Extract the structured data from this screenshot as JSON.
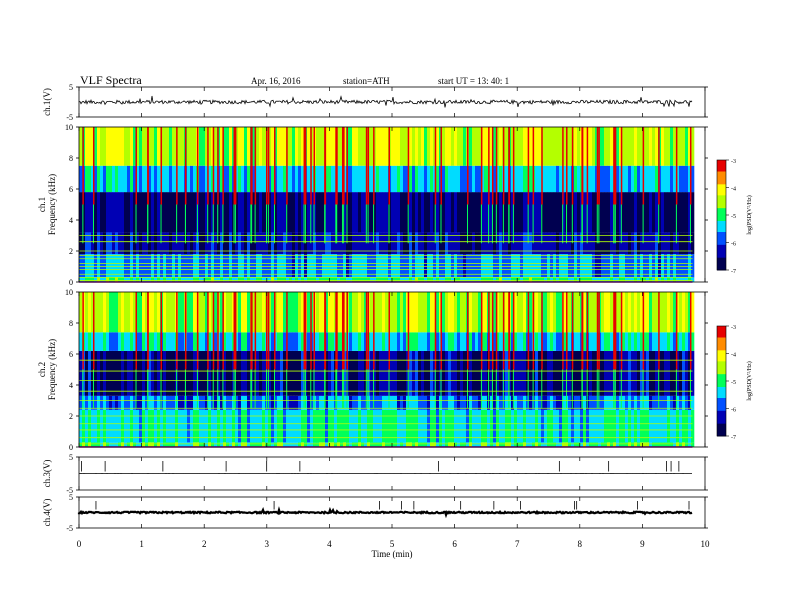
{
  "header": {
    "title": "VLF  Spectra",
    "date": "Apr. 16, 2016",
    "station": "station=ATH",
    "start": "start  UT  =    13: 40: 1"
  },
  "colorbar": {
    "label": "log(PSD(V²/Hz)",
    "ticks": [
      "-3",
      "-4",
      "-5",
      "-6",
      "-7"
    ],
    "colors": [
      "#000050",
      "#0000b4",
      "#0050ff",
      "#00dcff",
      "#00ff5a",
      "#b4ff00",
      "#ffff00",
      "#ff8c00",
      "#e60000",
      "#ffffff"
    ]
  },
  "chart_data": [
    {
      "type": "line",
      "name": "ch.1 waveform",
      "ylabel": "ch.1(V)",
      "yticks": [
        "5",
        "-5"
      ],
      "ylim": [
        -5,
        5
      ],
      "xlim": [
        0,
        10
      ],
      "x_end": 9.8,
      "baseline": 0,
      "typical_amplitude": 0.6,
      "line_color": "#000000"
    },
    {
      "type": "heatmap",
      "name": "ch.1 spectrogram",
      "ylabel": "ch.1\nFrequency  (kHz)",
      "yticks": [
        "0",
        "2",
        "4",
        "6",
        "8",
        "10"
      ],
      "ylim": [
        0,
        10
      ],
      "xlim": [
        0,
        10
      ],
      "x_end": 9.8,
      "value_range": [
        -7,
        -3
      ],
      "frequency_bands_kHz": [
        {
          "from": 0,
          "to": 0.3,
          "level": -5.2
        },
        {
          "from": 0.3,
          "to": 1.8,
          "level": -5.7
        },
        {
          "from": 1.8,
          "to": 3.2,
          "level": -6.4
        },
        {
          "from": 3.2,
          "to": 5.8,
          "level": -6.7
        },
        {
          "from": 5.8,
          "to": 7.5,
          "level": -5.5
        },
        {
          "from": 7.5,
          "to": 10,
          "level": -4.5
        }
      ],
      "horizontal_lines_kHz": [
        0.1,
        0.3,
        0.5,
        0.8,
        1.0,
        1.2,
        1.5,
        1.7,
        2.0,
        2.6,
        3.0
      ]
    },
    {
      "type": "heatmap",
      "name": "ch.2 spectrogram",
      "ylabel": "ch.2\nFrequency  (kHz)",
      "yticks": [
        "0",
        "2",
        "4",
        "6",
        "8",
        "10"
      ],
      "ylim": [
        0,
        10
      ],
      "xlim": [
        0,
        10
      ],
      "x_end": 9.8,
      "value_range": [
        -7,
        -3
      ],
      "frequency_bands_kHz": [
        {
          "from": 0,
          "to": 0.3,
          "level": -5.0
        },
        {
          "from": 0.3,
          "to": 2.4,
          "level": -5.3
        },
        {
          "from": 2.4,
          "to": 3.3,
          "level": -5.8
        },
        {
          "from": 3.3,
          "to": 6.2,
          "level": -6.5
        },
        {
          "from": 6.2,
          "to": 7.4,
          "level": -5.4
        },
        {
          "from": 7.4,
          "to": 10,
          "level": -4.5
        }
      ],
      "horizontal_lines_kHz": [
        0.2,
        0.6,
        1.1,
        1.5,
        2.0,
        2.5,
        3.0,
        3.6,
        4.3,
        4.9,
        5.6
      ]
    },
    {
      "type": "line",
      "name": "ch.3 waveform",
      "ylabel": "ch.3(V)",
      "yticks": [
        "5",
        "-5"
      ],
      "ylim": [
        -5,
        5
      ],
      "xlim": [
        0,
        10
      ],
      "x_end": 9.8,
      "baseline": 0,
      "typical_amplitude": 0.02,
      "line_color": "#000000"
    },
    {
      "type": "line",
      "name": "ch.4 waveform",
      "ylabel": "ch.4(V)",
      "yticks": [
        "5",
        "-5"
      ],
      "ylim": [
        -5,
        5
      ],
      "xlim": [
        0,
        10
      ],
      "x_end": 9.8,
      "baseline": 0,
      "typical_amplitude": 0.25,
      "line_color": "#000000"
    }
  ],
  "xaxis": {
    "label": "Time  (min)",
    "ticks": [
      "0",
      "1",
      "2",
      "3",
      "4",
      "5",
      "6",
      "7",
      "8",
      "9",
      "10"
    ]
  }
}
